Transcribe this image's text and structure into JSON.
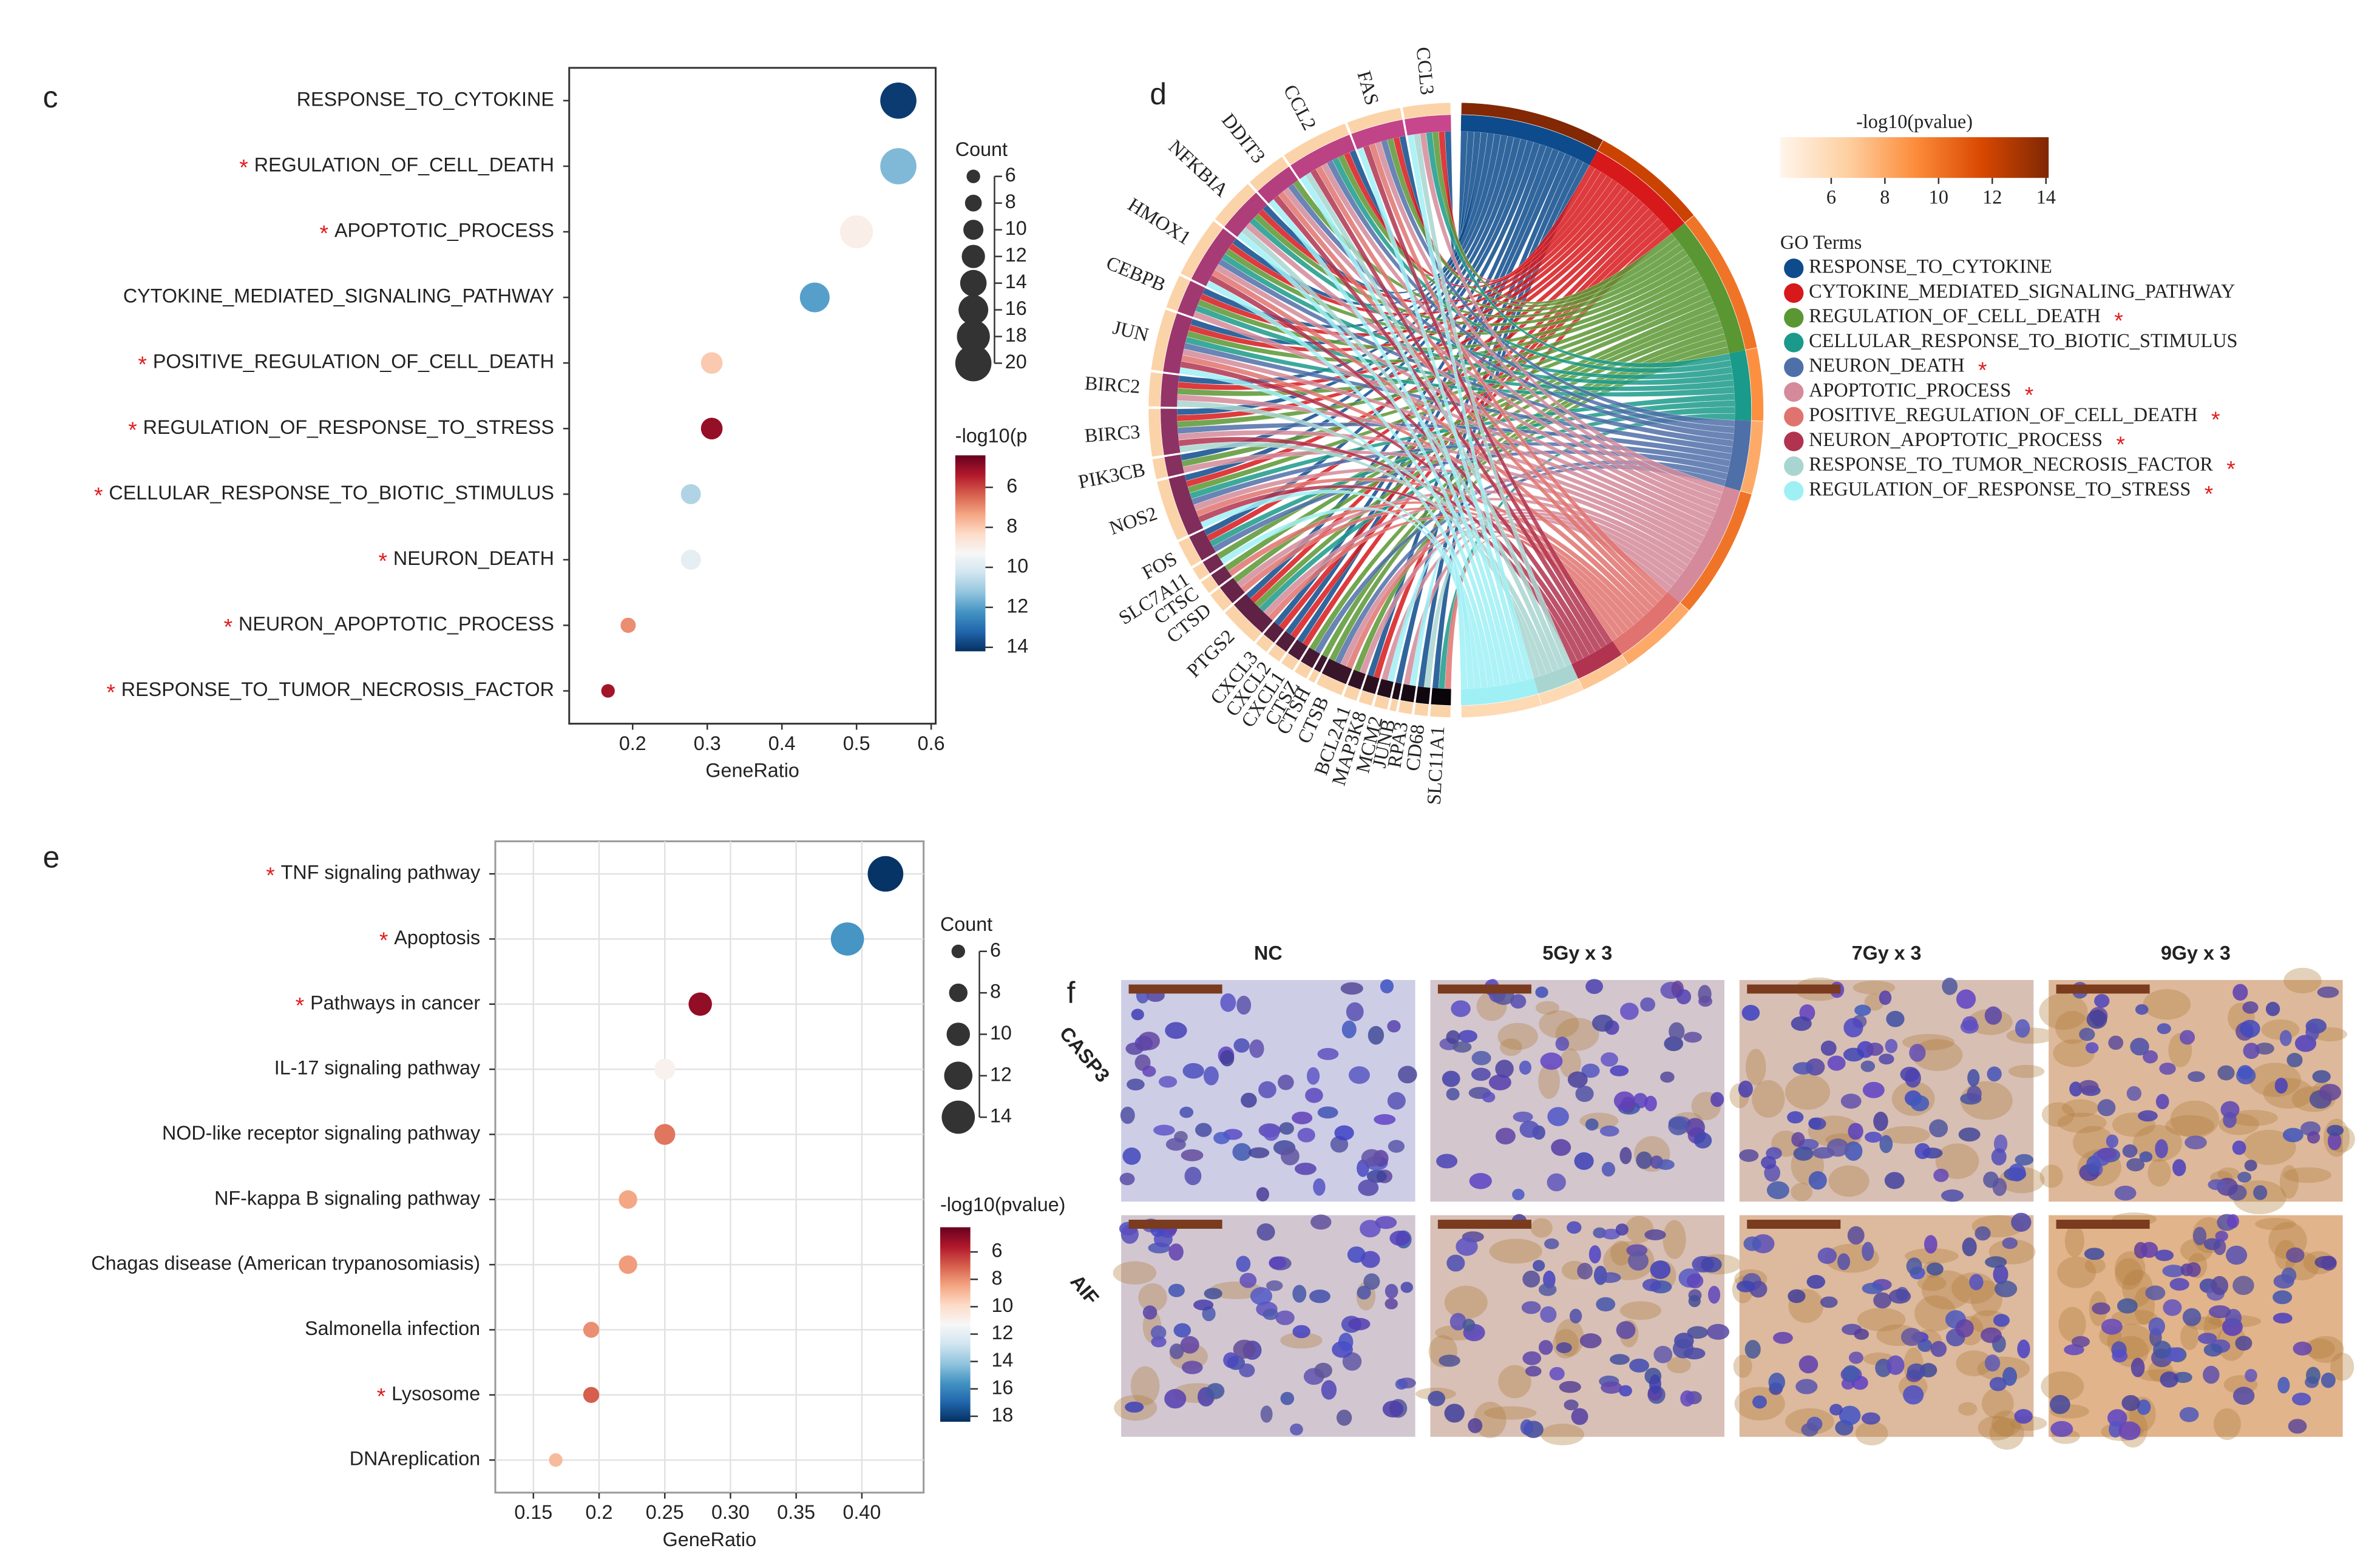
{
  "chart_data": [
    {
      "type": "dotplot",
      "panel": "c",
      "categories": [
        "RESPONSE_TO_CYTOKINE",
        "REGULATION_OF_CELL_DEATH",
        "APOPTOTIC_PROCESS",
        "CYTOKINE_MEDIATED_SIGNALING_PATHWAY",
        "POSITIVE_REGULATION_OF_CELL_DEATH",
        "REGULATION_OF_RESPONSE_TO_STRESS",
        "CELLULAR_RESPONSE_TO_BIOTIC_STIMULUS",
        "NEURON_DEATH",
        "NEURON_APOPTOTIC_PROCESS",
        "RESPONSE_TO_TUMOR_NECROSIS_FACTOR"
      ],
      "starred": [
        false,
        true,
        true,
        false,
        true,
        true,
        true,
        true,
        true,
        true
      ],
      "marker": "*",
      "values": [
        0.556,
        0.556,
        0.5,
        0.444,
        0.306,
        0.306,
        0.278,
        0.278,
        0.194,
        0.167
      ],
      "sizes": [
        20,
        20,
        18,
        16,
        11,
        11,
        10,
        10,
        7,
        6
      ],
      "colors": [
        14,
        11.5,
        9,
        12,
        8,
        5,
        10.8,
        9.8,
        7,
        5.2
      ],
      "x_label": "GeneRatio",
      "xlim": [
        0.115,
        0.606
      ],
      "xticks": [
        0.2,
        0.3,
        0.4,
        0.5,
        0.6
      ],
      "grid": false,
      "size_legend": {
        "title": "Count",
        "ticks": [
          6,
          8,
          10,
          12,
          14,
          16,
          18,
          20
        ]
      },
      "color_legend": {
        "title": "-log10(p",
        "lim": [
          4.4,
          14.2
        ],
        "ticks": [
          6,
          8,
          10,
          12,
          14
        ]
      },
      "colormap": [
        "#67001f",
        "#b2182b",
        "#d6604d",
        "#f4a582",
        "#fddbc7",
        "#f7f7f7",
        "#d1e5f0",
        "#92c5de",
        "#4393c3",
        "#2166ac",
        "#053061"
      ]
    },
    {
      "type": "chord",
      "panel": "d",
      "genes": [
        "CCL3",
        "FAS",
        "CCL2",
        "DDIT3",
        "NFKBIA",
        "HMOX1",
        "CEBPB",
        "JUN",
        "BIRC2",
        "BIRC3",
        "PIK3CB",
        "NOS2",
        "FOS",
        "SLC7A11",
        "CTSC",
        "CTSD",
        "PTGS2",
        "CXCL3",
        "CXCL2",
        "CXCL1",
        "CTSZ",
        "CTSH",
        "CTSB",
        "BCL2A1",
        "MAP3K8",
        "MCM2",
        "JUNB",
        "RPA3",
        "CD68",
        "SLC11A1"
      ],
      "marker": "*",
      "legend_title": "GO Terms",
      "terms": [
        {
          "name": "RESPONSE_TO_CYTOKINE",
          "color": "#0d4b8c",
          "starred": false,
          "value": 14,
          "genes": [
            "CCL3",
            "FAS",
            "CCL2",
            "NFKBIA",
            "HMOX1",
            "CEBPB",
            "JUN",
            "BIRC2",
            "BIRC3",
            "PIK3CB",
            "NOS2",
            "FOS",
            "PTGS2",
            "CXCL3",
            "CXCL2",
            "CXCL1",
            "MAP3K8",
            "JUNB",
            "CD68",
            "SLC11A1"
          ]
        },
        {
          "name": "CYTOKINE_MEDIATED_SIGNALING_PATHWAY",
          "color": "#d7191c",
          "starred": false,
          "value": 12,
          "genes": [
            "CCL3",
            "FAS",
            "CCL2",
            "NFKBIA",
            "HMOX1",
            "CEBPB",
            "JUN",
            "BIRC2",
            "BIRC3",
            "NOS2",
            "FOS",
            "PTGS2",
            "CXCL3",
            "CXCL2",
            "CXCL1",
            "MAP3K8"
          ]
        },
        {
          "name": "REGULATION_OF_CELL_DEATH",
          "color": "#5a9632",
          "starred": true,
          "value": 10,
          "genes": [
            "CCL3",
            "FAS",
            "CCL2",
            "DDIT3",
            "NFKBIA",
            "HMOX1",
            "CEBPB",
            "JUN",
            "BIRC2",
            "BIRC3",
            "PIK3CB",
            "NOS2",
            "SLC7A11",
            "CTSC",
            "CTSD",
            "PTGS2",
            "CTSZ",
            "CTSH",
            "CTSB",
            "BCL2A1"
          ]
        },
        {
          "name": "CELLULAR_RESPONSE_TO_BIOTIC_STIMULUS",
          "color": "#1a9a8a",
          "starred": false,
          "value": 9,
          "genes": [
            "CCL3",
            "CCL2",
            "NFKBIA",
            "HMOX1",
            "CEBPB",
            "JUN",
            "NOS2",
            "FOS",
            "PTGS2",
            "SLC11A1"
          ]
        },
        {
          "name": "NEURON_DEATH",
          "color": "#4f6fa8",
          "starred": true,
          "value": 8,
          "genes": [
            "FAS",
            "CCL2",
            "DDIT3",
            "HMOX1",
            "JUN",
            "BIRC3",
            "NOS2",
            "FOS",
            "CTSZ",
            "CTSB"
          ]
        },
        {
          "name": "APOPTOTIC_PROCESS",
          "color": "#d48a9a",
          "starred": true,
          "value": 10,
          "genes": [
            "CCL3",
            "FAS",
            "CCL2",
            "DDIT3",
            "NFKBIA",
            "HMOX1",
            "CEBPB",
            "JUN",
            "BIRC2",
            "BIRC3",
            "PIK3CB",
            "NOS2",
            "CTSD",
            "PTGS2",
            "CTSB",
            "BCL2A1",
            "MCM2",
            "RPA3"
          ]
        },
        {
          "name": "POSITIVE_REGULATION_OF_CELL_DEATH",
          "color": "#e0736f",
          "starred": true,
          "value": 8,
          "genes": [
            "FAS",
            "CCL2",
            "DDIT3",
            "HMOX1",
            "JUN",
            "NOS2",
            "CTSC",
            "CTSD",
            "PTGS2",
            "CTSB",
            "SLC11A1"
          ]
        },
        {
          "name": "NEURON_APOPTOTIC_PROCESS",
          "color": "#b0344f",
          "starred": true,
          "value": 7,
          "genes": [
            "FAS",
            "CCL2",
            "DDIT3",
            "HMOX1",
            "JUN",
            "BIRC3",
            "NOS2"
          ]
        },
        {
          "name": "RESPONSE_TO_TUMOR_NECROSIS_FACTOR",
          "color": "#a8d5d0",
          "starred": true,
          "value": 6,
          "genes": [
            "CCL3",
            "CCL2",
            "NFKBIA",
            "BIRC2",
            "BIRC3",
            "CD68"
          ]
        },
        {
          "name": "REGULATION_OF_RESPONSE_TO_STRESS",
          "color": "#9ff0f5",
          "starred": true,
          "value": 6,
          "genes": [
            "CCL3",
            "FAS",
            "CCL2",
            "DDIT3",
            "NFKBIA",
            "HMOX1",
            "JUN",
            "NOS2",
            "SLC7A11",
            "MCM2",
            "RPA3"
          ]
        }
      ],
      "color_legend": {
        "title": "-log10(pvalue)",
        "lim": [
          4.1,
          14.1
        ],
        "ticks": [
          6,
          8,
          10,
          12,
          14
        ]
      },
      "colormap": [
        "#fff5eb",
        "#fdd0a2",
        "#fd8d3c",
        "#d94801",
        "#7f2704"
      ]
    },
    {
      "type": "dotplot",
      "panel": "e",
      "categories": [
        "TNF signaling pathway",
        "Apoptosis",
        "Pathways in cancer",
        "IL-17 signaling pathway",
        "NOD-like receptor signaling pathway",
        "NF-kappa B signaling pathway",
        "Chagas disease (American trypanosomiasis)",
        "Salmonella infection",
        "Lysosome",
        "DNAreplication"
      ],
      "starred": [
        true,
        true,
        true,
        false,
        false,
        false,
        false,
        false,
        true,
        false
      ],
      "marker": "*",
      "values": [
        0.418,
        0.389,
        0.277,
        0.25,
        0.25,
        0.222,
        0.222,
        0.194,
        0.194,
        0.167
      ],
      "sizes": [
        15,
        14,
        10,
        9,
        9,
        8,
        8,
        7,
        7,
        6
      ],
      "colors": [
        18.3,
        15.5,
        5,
        11,
        7.5,
        8.5,
        8.3,
        8,
        7,
        9
      ],
      "x_label": "GeneRatio",
      "xlim": [
        0.121,
        0.447
      ],
      "xticks": [
        0.15,
        0.2,
        0.25,
        {
          "value": 0.3,
          "label": "0.30"
        },
        0.35,
        {
          "value": 0.4,
          "label": "0.40"
        }
      ],
      "grid": true,
      "size_legend": {
        "title": "Count",
        "ticks": [
          6,
          8,
          10,
          12,
          14
        ]
      },
      "color_legend": {
        "title": "-log10(pvalue)",
        "lim": [
          4.2,
          18.4
        ],
        "ticks": [
          6,
          8,
          10,
          12,
          14,
          16,
          18
        ]
      },
      "colormap": [
        "#67001f",
        "#b2182b",
        "#d6604d",
        "#f4a582",
        "#fddbc7",
        "#f7f7f7",
        "#d1e5f0",
        "#92c5de",
        "#4393c3",
        "#2166ac",
        "#053061"
      ]
    }
  ],
  "micrographs": {
    "panel": "f",
    "columns": [
      "NC",
      "5Gy x 3",
      "7Gy x 3",
      "9Gy x 3"
    ],
    "rows": [
      "CASP3",
      "AIF"
    ]
  }
}
